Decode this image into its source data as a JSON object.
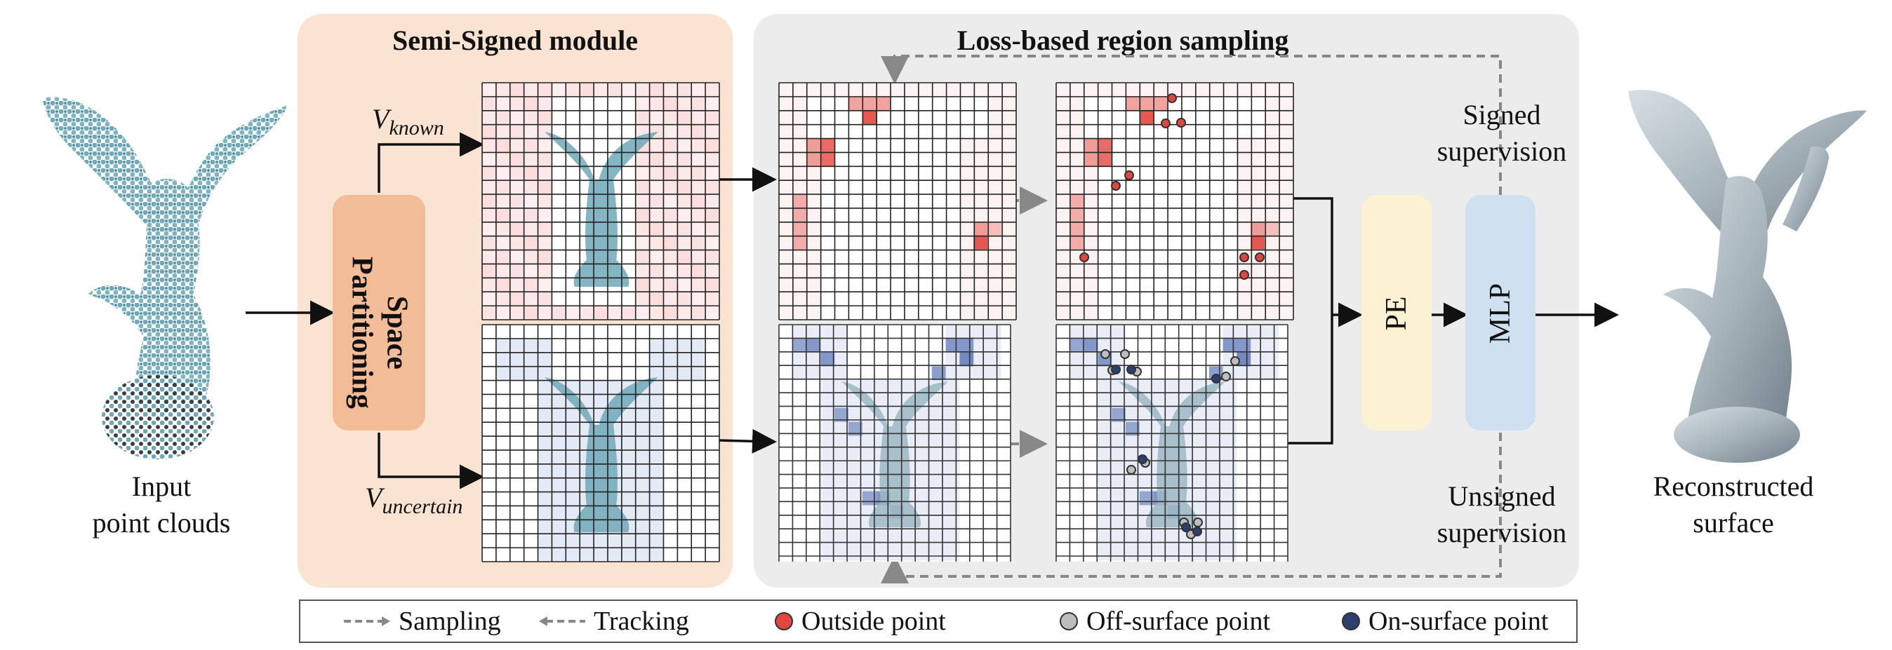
{
  "semi_signed": {
    "title": "Semi-Signed module"
  },
  "loss_sampling": {
    "title": "Loss-based region sampling"
  },
  "partition_box": {
    "line1": "Space",
    "line2": "Partitioning"
  },
  "v_known": {
    "base": "V",
    "sub": "known"
  },
  "v_uncertain": {
    "base": "V",
    "sub": "uncertain"
  },
  "input_caption": {
    "line1": "Input",
    "line2": "point clouds"
  },
  "output_caption": {
    "line1": "Reconstructed",
    "line2": "surface"
  },
  "pe_box": {
    "label": "PE"
  },
  "mlp_box": {
    "label": "MLP"
  },
  "signed_sup": {
    "line1": "Signed",
    "line2": "supervision"
  },
  "unsigned_sup": {
    "line1": "Unsigned",
    "line2": "supervision"
  },
  "legend": {
    "sampling": "Sampling",
    "tracking": "Tracking",
    "outside": "Outside point",
    "off_surface": "Off-surface point",
    "on_surface": "On-surface point"
  },
  "colors": {
    "semi_panel": "#fbe3d1",
    "loss_panel": "#ececec",
    "partition": "#f2bd96",
    "pe": "#fbf2d4",
    "mlp": "#cfe0f0",
    "outside_point": "#e2473f",
    "off_surface_point": "#bdbdbd",
    "on_surface_point": "#2d3f6e",
    "pointcloud": "#6fa8b8",
    "surface": "#a9b6be"
  }
}
